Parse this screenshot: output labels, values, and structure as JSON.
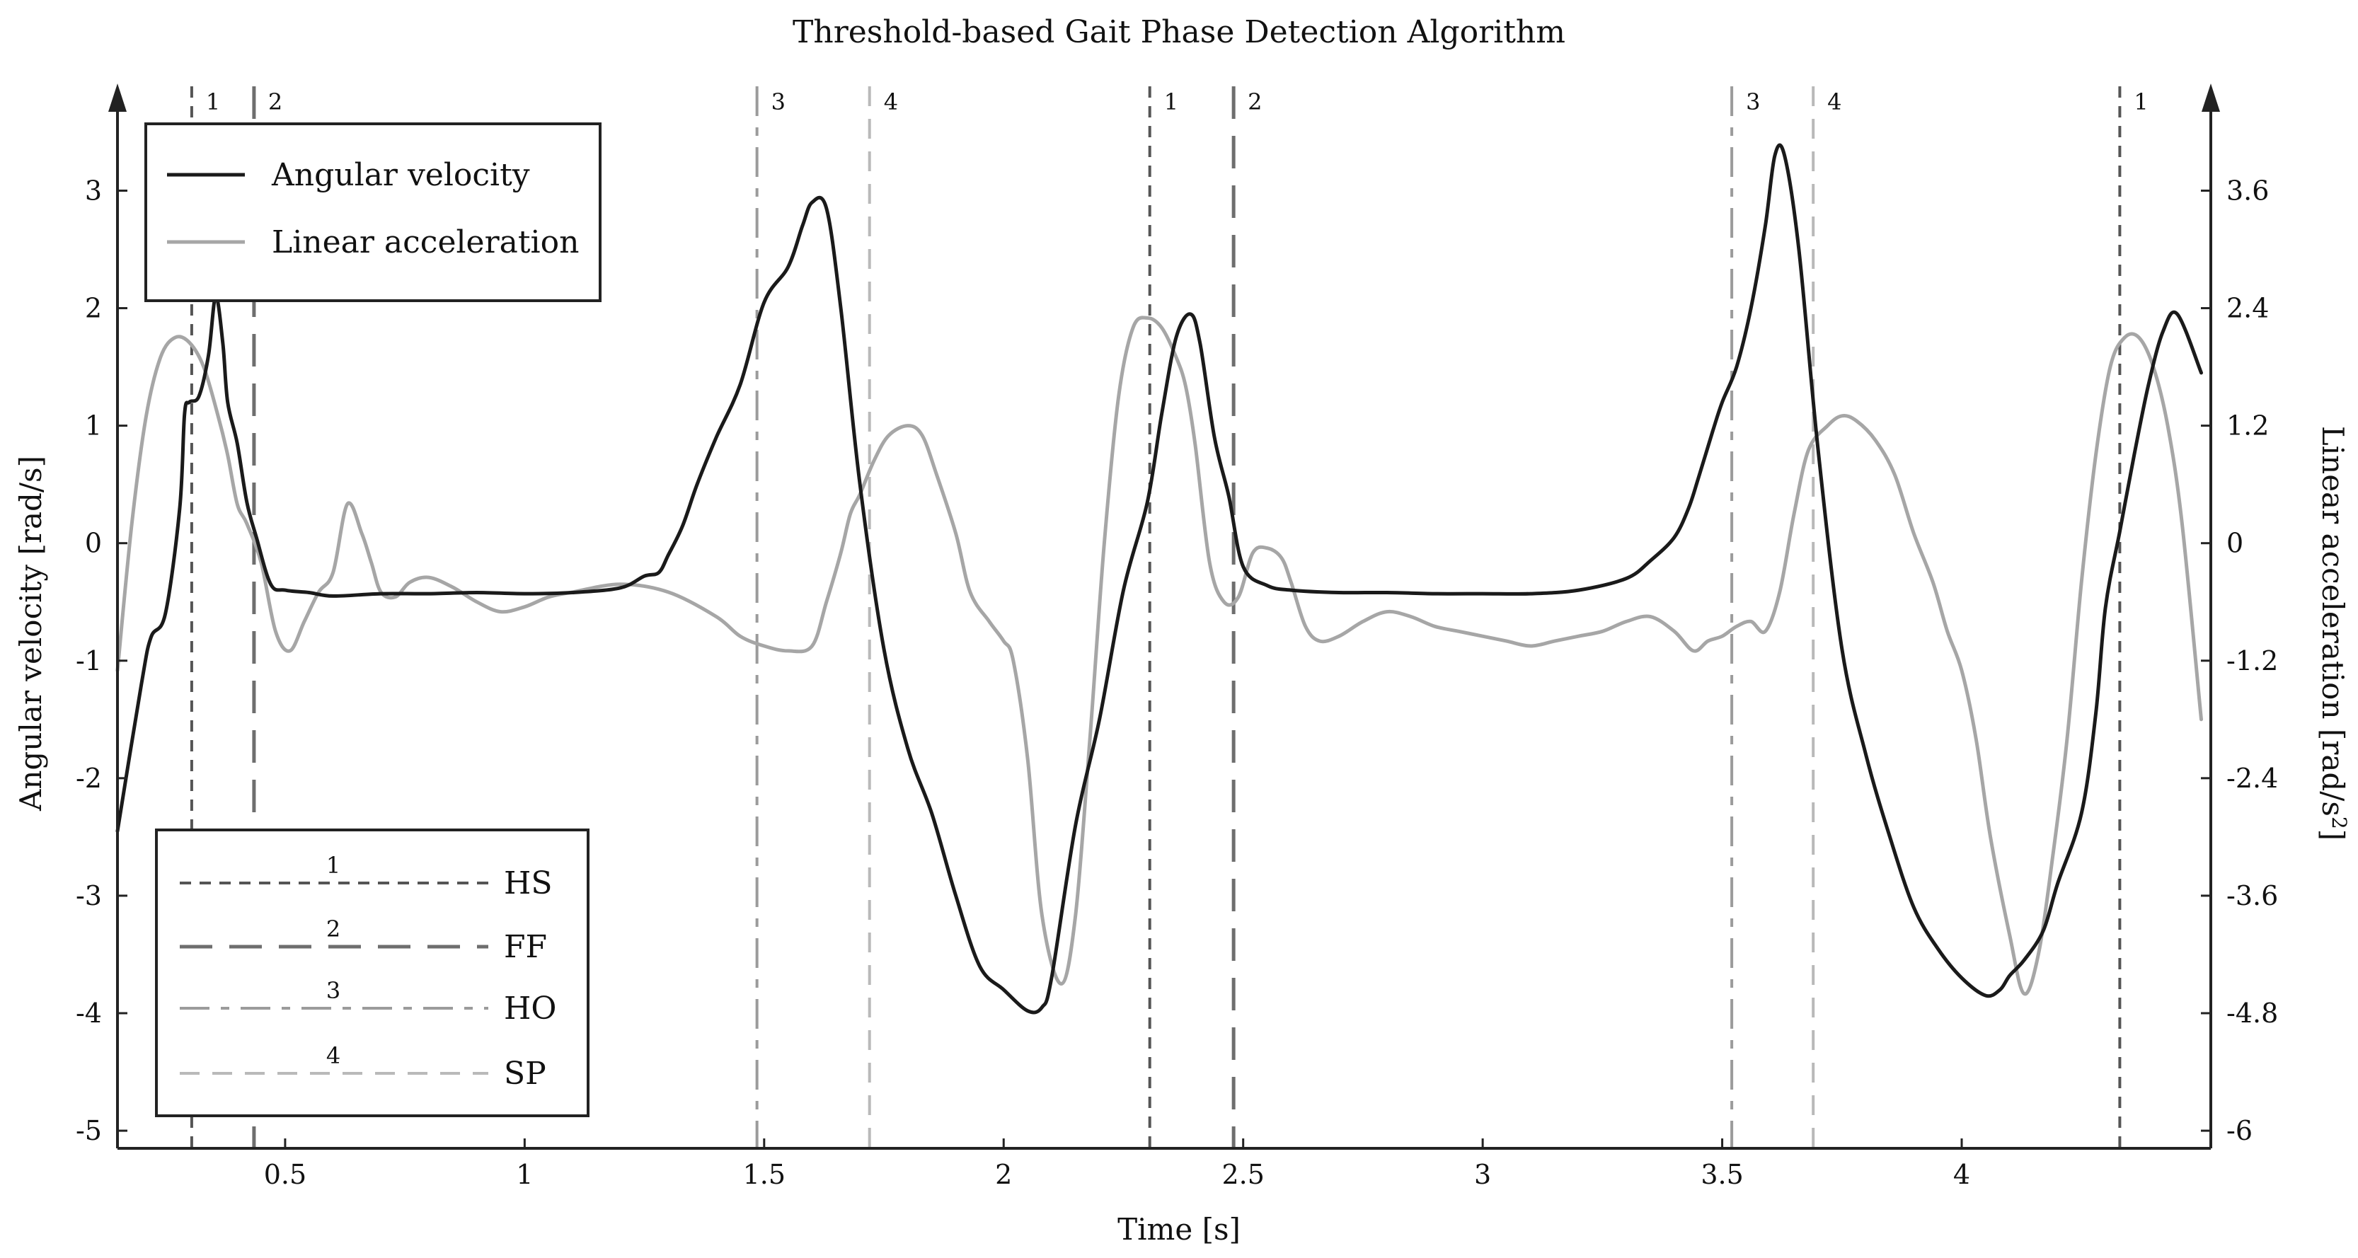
{
  "chart_data": {
    "type": "line",
    "title": "Threshold-based Gait Phase Detection Algorithm",
    "xlabel": "Time [s]",
    "ylabel_left": "Angular velocity [rad/s]",
    "ylabel_right_base": "Linear acceleration [rad/s",
    "ylabel_right_sup": "2",
    "ylabel_right_tail": "]",
    "xlim": [
      0.15,
      4.52
    ],
    "ylim_left": [
      -5.15,
      3.9
    ],
    "ylim_right": [
      -6.18,
      4.68
    ],
    "x_ticks": [
      0.5,
      1,
      1.5,
      2,
      2.5,
      3,
      3.5,
      4
    ],
    "x_tick_labels": [
      "0.5",
      "1",
      "1.5",
      "2",
      "2.5",
      "3",
      "3.5",
      "4"
    ],
    "y_left_ticks": [
      -5,
      -4,
      -3,
      -2,
      -1,
      0,
      1,
      2,
      3
    ],
    "y_left_tick_labels": [
      "-5",
      "-4",
      "-3",
      "-2",
      "-1",
      "0",
      "1",
      "2",
      "3"
    ],
    "y_right_ticks": [
      -6,
      -4.8,
      -3.6,
      -2.4,
      -1.2,
      0,
      1.2,
      2.4,
      3.6
    ],
    "y_right_tick_labels": [
      "-6",
      "-4.8",
      "-3.6",
      "-2.4",
      "-1.2",
      "0",
      "1.2",
      "2.4",
      "3.6"
    ],
    "legend_top": [
      {
        "label": "Angular velocity",
        "color": "#1a1a1a"
      },
      {
        "label": "Linear acceleration",
        "color": "#a6a6a6"
      }
    ],
    "legend_events": [
      {
        "number": "1",
        "label": "HS",
        "color": "#555555",
        "style": "short-dash"
      },
      {
        "number": "2",
        "label": "FF",
        "color": "#6e6e6e",
        "style": "long-dash"
      },
      {
        "number": "3",
        "label": "HO",
        "color": "#9b9b9b",
        "style": "dash-dot"
      },
      {
        "number": "4",
        "label": "SP",
        "color": "#b9b9b9",
        "style": "dash"
      }
    ],
    "events": [
      {
        "x": 0.305,
        "label": "1",
        "type": 1
      },
      {
        "x": 0.435,
        "label": "2",
        "type": 2
      },
      {
        "x": 1.485,
        "label": "3",
        "type": 3
      },
      {
        "x": 1.72,
        "label": "4",
        "type": 4
      },
      {
        "x": 2.305,
        "label": "1",
        "type": 1
      },
      {
        "x": 2.48,
        "label": "2",
        "type": 2
      },
      {
        "x": 3.52,
        "label": "3",
        "type": 3
      },
      {
        "x": 3.69,
        "label": "4",
        "type": 4
      },
      {
        "x": 4.33,
        "label": "1",
        "type": 1
      }
    ],
    "series": [
      {
        "name": "Angular velocity",
        "axis": "left",
        "color": "#1a1a1a",
        "x": [
          0.15,
          0.2,
          0.22,
          0.25,
          0.28,
          0.29,
          0.3,
          0.32,
          0.34,
          0.355,
          0.37,
          0.38,
          0.4,
          0.42,
          0.44,
          0.47,
          0.5,
          0.55,
          0.6,
          0.7,
          0.8,
          0.9,
          1.0,
          1.1,
          1.2,
          1.25,
          1.28,
          1.3,
          1.33,
          1.36,
          1.4,
          1.45,
          1.5,
          1.55,
          1.58,
          1.6,
          1.63,
          1.66,
          1.7,
          1.75,
          1.8,
          1.85,
          1.9,
          1.95,
          2.0,
          2.05,
          2.08,
          2.1,
          2.15,
          2.2,
          2.25,
          2.3,
          2.33,
          2.36,
          2.39,
          2.41,
          2.44,
          2.47,
          2.5,
          2.55,
          2.6,
          2.7,
          2.8,
          2.9,
          3.0,
          3.1,
          3.2,
          3.3,
          3.35,
          3.4,
          3.43,
          3.45,
          3.48,
          3.5,
          3.53,
          3.56,
          3.59,
          3.61,
          3.63,
          3.66,
          3.7,
          3.75,
          3.8,
          3.85,
          3.9,
          3.95,
          4.0,
          4.05,
          4.08,
          4.1,
          4.13,
          4.17,
          4.2,
          4.25,
          4.28,
          4.3,
          4.33,
          4.36,
          4.39,
          4.42,
          4.45,
          4.5
        ],
        "y": [
          -2.45,
          -1.2,
          -0.8,
          -0.6,
          0.3,
          1.1,
          1.2,
          1.25,
          1.6,
          2.1,
          1.7,
          1.2,
          0.85,
          0.35,
          0.05,
          -0.35,
          -0.4,
          -0.42,
          -0.45,
          -0.43,
          -0.43,
          -0.42,
          -0.43,
          -0.42,
          -0.38,
          -0.28,
          -0.25,
          -0.1,
          0.15,
          0.5,
          0.9,
          1.35,
          2.05,
          2.35,
          2.7,
          2.9,
          2.85,
          2.0,
          0.5,
          -0.9,
          -1.75,
          -2.3,
          -3.0,
          -3.6,
          -3.8,
          -3.98,
          -3.95,
          -3.7,
          -2.4,
          -1.5,
          -0.4,
          0.35,
          1.1,
          1.75,
          1.95,
          1.7,
          0.9,
          0.4,
          -0.2,
          -0.36,
          -0.4,
          -0.42,
          -0.42,
          -0.43,
          -0.43,
          -0.43,
          -0.4,
          -0.3,
          -0.15,
          0.05,
          0.3,
          0.55,
          0.95,
          1.2,
          1.5,
          2.0,
          2.7,
          3.3,
          3.3,
          2.5,
          0.8,
          -0.9,
          -1.8,
          -2.5,
          -3.1,
          -3.45,
          -3.7,
          -3.85,
          -3.8,
          -3.68,
          -3.55,
          -3.3,
          -2.9,
          -2.3,
          -1.45,
          -0.55,
          0.1,
          0.75,
          1.35,
          1.8,
          1.95,
          1.45
        ],
        "_note_clip_end": ""
      },
      {
        "name": "Linear acceleration",
        "axis": "right",
        "color": "#a6a6a6",
        "x": [
          0.15,
          0.18,
          0.21,
          0.24,
          0.27,
          0.3,
          0.33,
          0.36,
          0.38,
          0.4,
          0.42,
          0.45,
          0.48,
          0.51,
          0.54,
          0.57,
          0.6,
          0.63,
          0.66,
          0.68,
          0.7,
          0.73,
          0.76,
          0.8,
          0.85,
          0.9,
          0.95,
          1.0,
          1.05,
          1.1,
          1.2,
          1.3,
          1.4,
          1.45,
          1.5,
          1.55,
          1.6,
          1.63,
          1.66,
          1.68,
          1.7,
          1.73,
          1.76,
          1.8,
          1.83,
          1.86,
          1.9,
          1.93,
          1.97,
          2.0,
          2.02,
          2.05,
          2.08,
          2.12,
          2.15,
          2.18,
          2.21,
          2.24,
          2.27,
          2.3,
          2.33,
          2.36,
          2.38,
          2.4,
          2.43,
          2.46,
          2.49,
          2.52,
          2.55,
          2.58,
          2.6,
          2.63,
          2.66,
          2.7,
          2.75,
          2.8,
          2.85,
          2.9,
          2.95,
          3.0,
          3.05,
          3.1,
          3.15,
          3.2,
          3.25,
          3.3,
          3.35,
          3.4,
          3.44,
          3.47,
          3.5,
          3.53,
          3.56,
          3.59,
          3.62,
          3.65,
          3.68,
          3.72,
          3.75,
          3.78,
          3.82,
          3.86,
          3.9,
          3.94,
          3.97,
          4.0,
          4.03,
          4.06,
          4.1,
          4.13,
          4.16,
          4.19,
          4.22,
          4.25,
          4.28,
          4.31,
          4.34,
          4.37,
          4.4,
          4.43,
          4.46,
          4.5
        ],
        "y": [
          -1.3,
          0.2,
          1.3,
          1.9,
          2.1,
          2.05,
          1.8,
          1.3,
          0.9,
          0.4,
          0.2,
          -0.2,
          -0.9,
          -1.1,
          -0.8,
          -0.5,
          -0.3,
          0.4,
          0.1,
          -0.2,
          -0.5,
          -0.55,
          -0.4,
          -0.35,
          -0.45,
          -0.6,
          -0.7,
          -0.65,
          -0.55,
          -0.5,
          -0.42,
          -0.5,
          -0.75,
          -0.95,
          -1.05,
          -1.1,
          -1.05,
          -0.6,
          -0.1,
          0.3,
          0.5,
          0.85,
          1.1,
          1.2,
          1.1,
          0.7,
          0.1,
          -0.5,
          -0.8,
          -1.0,
          -1.2,
          -2.2,
          -3.8,
          -4.5,
          -3.8,
          -2.0,
          0.0,
          1.5,
          2.2,
          2.3,
          2.2,
          1.9,
          1.6,
          1.0,
          -0.2,
          -0.6,
          -0.55,
          -0.1,
          -0.05,
          -0.15,
          -0.4,
          -0.85,
          -1.0,
          -0.95,
          -0.8,
          -0.7,
          -0.75,
          -0.85,
          -0.9,
          -0.95,
          -1.0,
          -1.05,
          -1.0,
          -0.95,
          -0.9,
          -0.8,
          -0.75,
          -0.9,
          -1.1,
          -1.0,
          -0.95,
          -0.85,
          -0.8,
          -0.9,
          -0.5,
          0.3,
          0.95,
          1.2,
          1.3,
          1.25,
          1.05,
          0.7,
          0.1,
          -0.4,
          -0.9,
          -1.3,
          -2.0,
          -3.0,
          -4.0,
          -4.6,
          -4.2,
          -3.2,
          -2.0,
          -0.4,
          0.9,
          1.8,
          2.1,
          2.1,
          1.8,
          1.2,
          0.2,
          -1.8
        ],
        "_note_clip_end": ""
      }
    ]
  }
}
